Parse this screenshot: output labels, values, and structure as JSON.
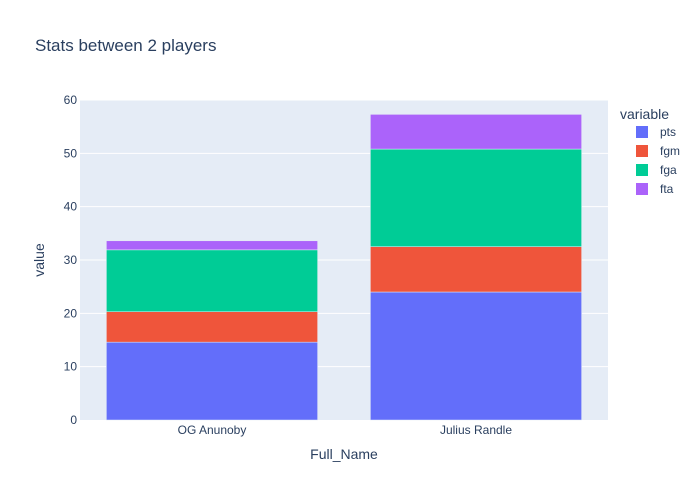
{
  "chart_data": {
    "type": "bar",
    "barmode": "stack",
    "title": "Stats between 2 players",
    "xlabel": "Full_Name",
    "ylabel": "value",
    "ylim": [
      0,
      60
    ],
    "yticks": [
      0,
      10,
      20,
      30,
      40,
      50,
      60
    ],
    "grid": true,
    "legend": {
      "title": "variable",
      "placement": "top-right"
    },
    "categories": [
      "OG Anunoby",
      "Julius Randle"
    ],
    "series": [
      {
        "name": "pts",
        "color": "#636efa",
        "values": [
          14.6,
          24.0
        ]
      },
      {
        "name": "fgm",
        "color": "#ef553b",
        "values": [
          5.7,
          8.5
        ]
      },
      {
        "name": "fga",
        "color": "#00cc96",
        "values": [
          11.6,
          18.3
        ]
      },
      {
        "name": "fta",
        "color": "#ab63fa",
        "values": [
          1.7,
          6.5
        ]
      }
    ]
  }
}
